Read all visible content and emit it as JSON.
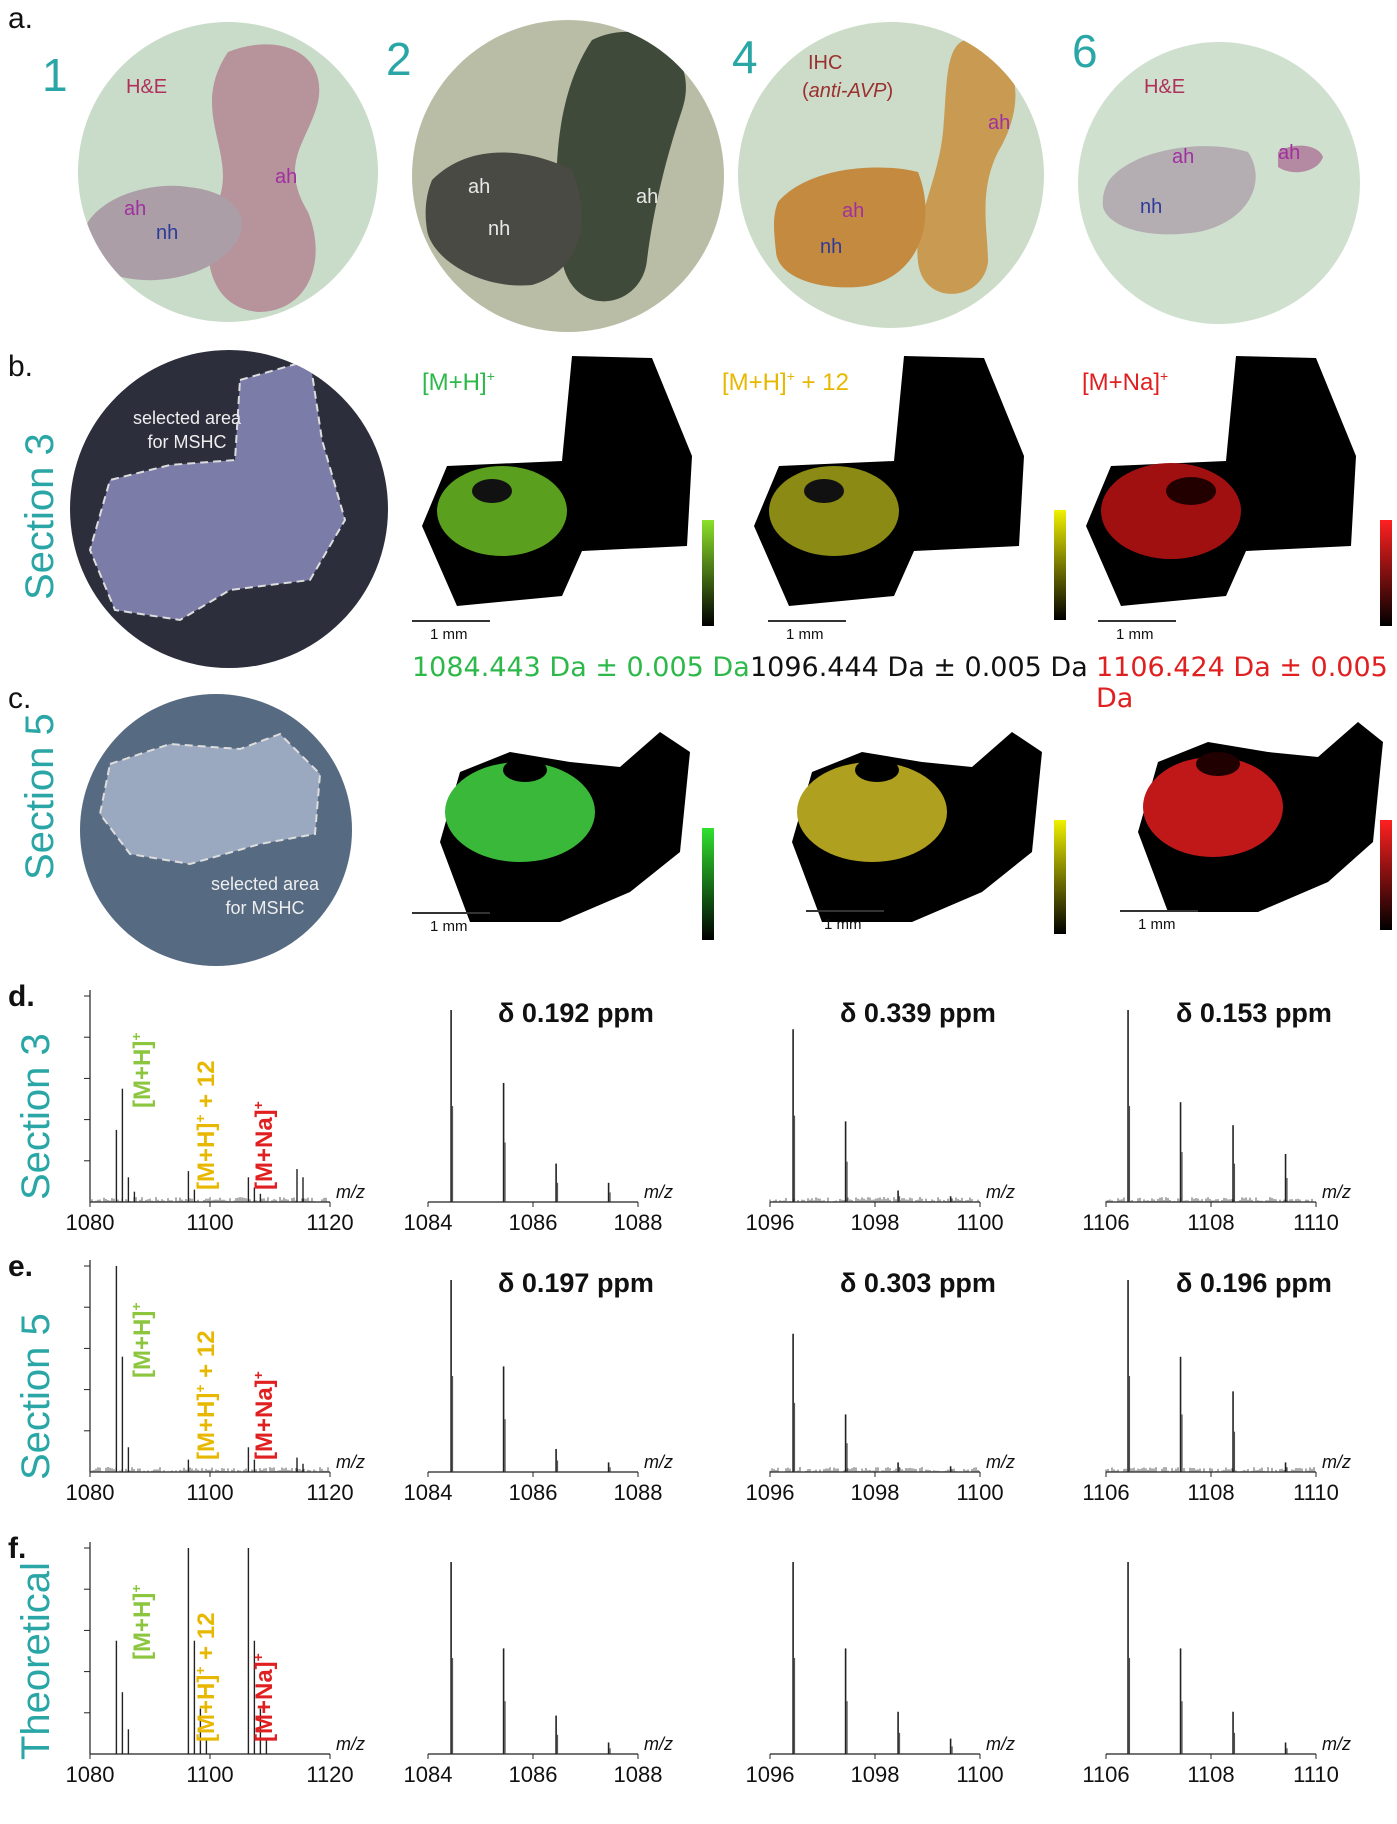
{
  "panel_a": {
    "letter": "a.",
    "images": [
      {
        "number": "1",
        "stain": "H&E",
        "labels": [
          "ah",
          "ah",
          "nh"
        ]
      },
      {
        "number": "2",
        "labels": [
          "ah",
          "nh",
          "ah"
        ]
      },
      {
        "number": "4",
        "stain": "IHC",
        "stain_sub": "anti-AVP",
        "labels": [
          "ah",
          "ah",
          "nh"
        ]
      },
      {
        "number": "6",
        "stain": "H&E",
        "labels": [
          "ah",
          "ah",
          "nh"
        ]
      }
    ]
  },
  "panel_b": {
    "letter": "b.",
    "section": "Section 3",
    "selected_area": [
      "selected area",
      "for MSHC"
    ],
    "ions": [
      {
        "label": "[M+H]",
        "sup": "+",
        "suffix": "",
        "color": "#2db84a"
      },
      {
        "label": "[M+H]",
        "sup": "+",
        "suffix": " + 12",
        "color": "#e8b800"
      },
      {
        "label": "[M+Na]",
        "sup": "+",
        "suffix": "",
        "color": "#e02020"
      }
    ],
    "scale_bar": "1 mm",
    "masses": [
      {
        "text": "1084.443 Da ± 0.005 Da",
        "color": "#2db84a"
      },
      {
        "text": "1096.444 Da ± 0.005 Da",
        "color": "#111111"
      },
      {
        "text": "1106.424 Da ± 0.005 Da",
        "color": "#e02020"
      }
    ]
  },
  "panel_c": {
    "letter": "c.",
    "section": "Section 5",
    "selected_area": [
      "selected area",
      "for MSHC"
    ],
    "scale_bar": "1 mm"
  },
  "colors": {
    "teal": "#2aa6a6",
    "green": "#2db84a",
    "lightgreen": "#8cc63e",
    "yellow": "#e8b800",
    "red": "#e02020"
  },
  "spectra": {
    "xlabel": "m/z",
    "ion_labels": {
      "mh": "[M+H]",
      "mh12": "[M+H]",
      "mh12_suffix": " + 12",
      "mna": "[M+Na]",
      "sup": "+"
    },
    "rows": [
      {
        "letter": "d.",
        "section": "Section 3",
        "overview_ticks": [
          "1080",
          "1100",
          "1120"
        ],
        "zooms": [
          {
            "delta": "δ 0.192 ppm",
            "ticks": [
              "1084",
              "1086",
              "1088"
            ]
          },
          {
            "delta": "δ 0.339 ppm",
            "ticks": [
              "1096",
              "1098",
              "1100"
            ]
          },
          {
            "delta": "δ 0.153 ppm",
            "ticks": [
              "1106",
              "1108",
              "1110"
            ]
          }
        ]
      },
      {
        "letter": "e.",
        "section": "Section 5",
        "overview_ticks": [
          "1080",
          "1100",
          "1120"
        ],
        "zooms": [
          {
            "delta": "δ 0.197 ppm",
            "ticks": [
              "1084",
              "1086",
              "1088"
            ]
          },
          {
            "delta": "δ 0.303 ppm",
            "ticks": [
              "1096",
              "1098",
              "1100"
            ]
          },
          {
            "delta": "δ 0.196 ppm",
            "ticks": [
              "1106",
              "1108",
              "1110"
            ]
          }
        ]
      },
      {
        "letter": "f.",
        "section": "Theoretical",
        "overview_ticks": [
          "1080",
          "1100",
          "1120"
        ],
        "zooms": [
          {
            "delta": "",
            "ticks": [
              "1084",
              "1086",
              "1088"
            ]
          },
          {
            "delta": "",
            "ticks": [
              "1096",
              "1098",
              "1100"
            ]
          },
          {
            "delta": "",
            "ticks": [
              "1106",
              "1108",
              "1110"
            ]
          }
        ]
      }
    ]
  }
}
